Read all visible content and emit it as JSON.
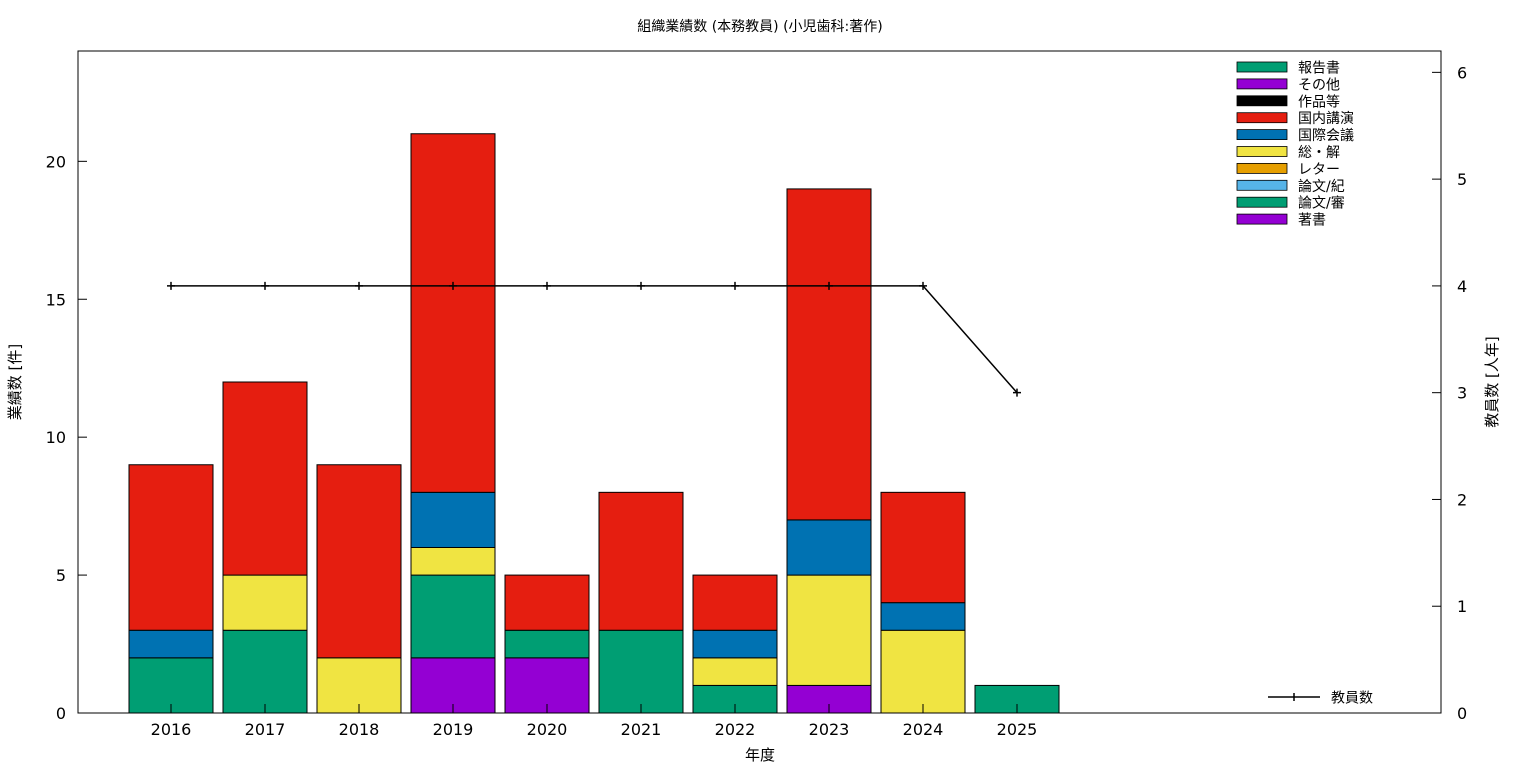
{
  "chart_data": {
    "type": "bar",
    "stacked": true,
    "title": "組織業績数 (本務教員) (小児歯科:著作)",
    "xlabel": "年度",
    "ylabel": "業績数 [件]",
    "y2label": "教員数 [人年]",
    "categories": [
      "2016",
      "2017",
      "2018",
      "2019",
      "2020",
      "2021",
      "2022",
      "2023",
      "2024",
      "2025"
    ],
    "ylim": [
      0,
      24
    ],
    "y2lim": [
      0,
      6.2
    ],
    "yticks": [
      "0",
      "5",
      "10",
      "15",
      "20"
    ],
    "y2ticks": [
      "0",
      "1",
      "2",
      "3",
      "4",
      "5",
      "6"
    ],
    "grid": false,
    "legend_position": "top-right",
    "series": [
      {
        "name": "著書",
        "color": "#9400d3",
        "values": [
          0,
          0,
          0,
          2,
          2,
          0,
          0,
          1,
          0,
          0
        ]
      },
      {
        "name": "論文/審",
        "color": "#009e73",
        "values": [
          2,
          3,
          0,
          3,
          1,
          3,
          1,
          0,
          0,
          1
        ]
      },
      {
        "name": "論文/紀",
        "color": "#56b4e9",
        "values": [
          0,
          0,
          0,
          0,
          0,
          0,
          0,
          0,
          0,
          0
        ]
      },
      {
        "name": "レター",
        "color": "#e69f00",
        "values": [
          0,
          0,
          0,
          0,
          0,
          0,
          0,
          0,
          0,
          0
        ]
      },
      {
        "name": "総・解",
        "color": "#f0e442",
        "values": [
          0,
          2,
          2,
          1,
          0,
          0,
          1,
          4,
          3,
          0
        ]
      },
      {
        "name": "国際会議",
        "color": "#0072b2",
        "values": [
          1,
          0,
          0,
          2,
          0,
          0,
          1,
          2,
          1,
          0
        ]
      },
      {
        "name": "国内講演",
        "color": "#e51e10",
        "values": [
          6,
          7,
          7,
          13,
          2,
          5,
          2,
          12,
          4,
          0
        ]
      },
      {
        "name": "作品等",
        "color": "#000000",
        "values": [
          0,
          0,
          0,
          0,
          0,
          0,
          0,
          0,
          0,
          0
        ]
      },
      {
        "name": "その他",
        "color": "#9400d3",
        "values": [
          0,
          0,
          0,
          0,
          0,
          0,
          0,
          0,
          0,
          0
        ]
      },
      {
        "name": "報告書",
        "color": "#009e73",
        "values": [
          0,
          0,
          0,
          0,
          0,
          0,
          0,
          0,
          0,
          0
        ]
      }
    ],
    "line_series": {
      "name": "教員数",
      "axis": "y2",
      "color": "#000000",
      "values": [
        4,
        4,
        4,
        4,
        4,
        4,
        4,
        4,
        4,
        3
      ]
    }
  }
}
